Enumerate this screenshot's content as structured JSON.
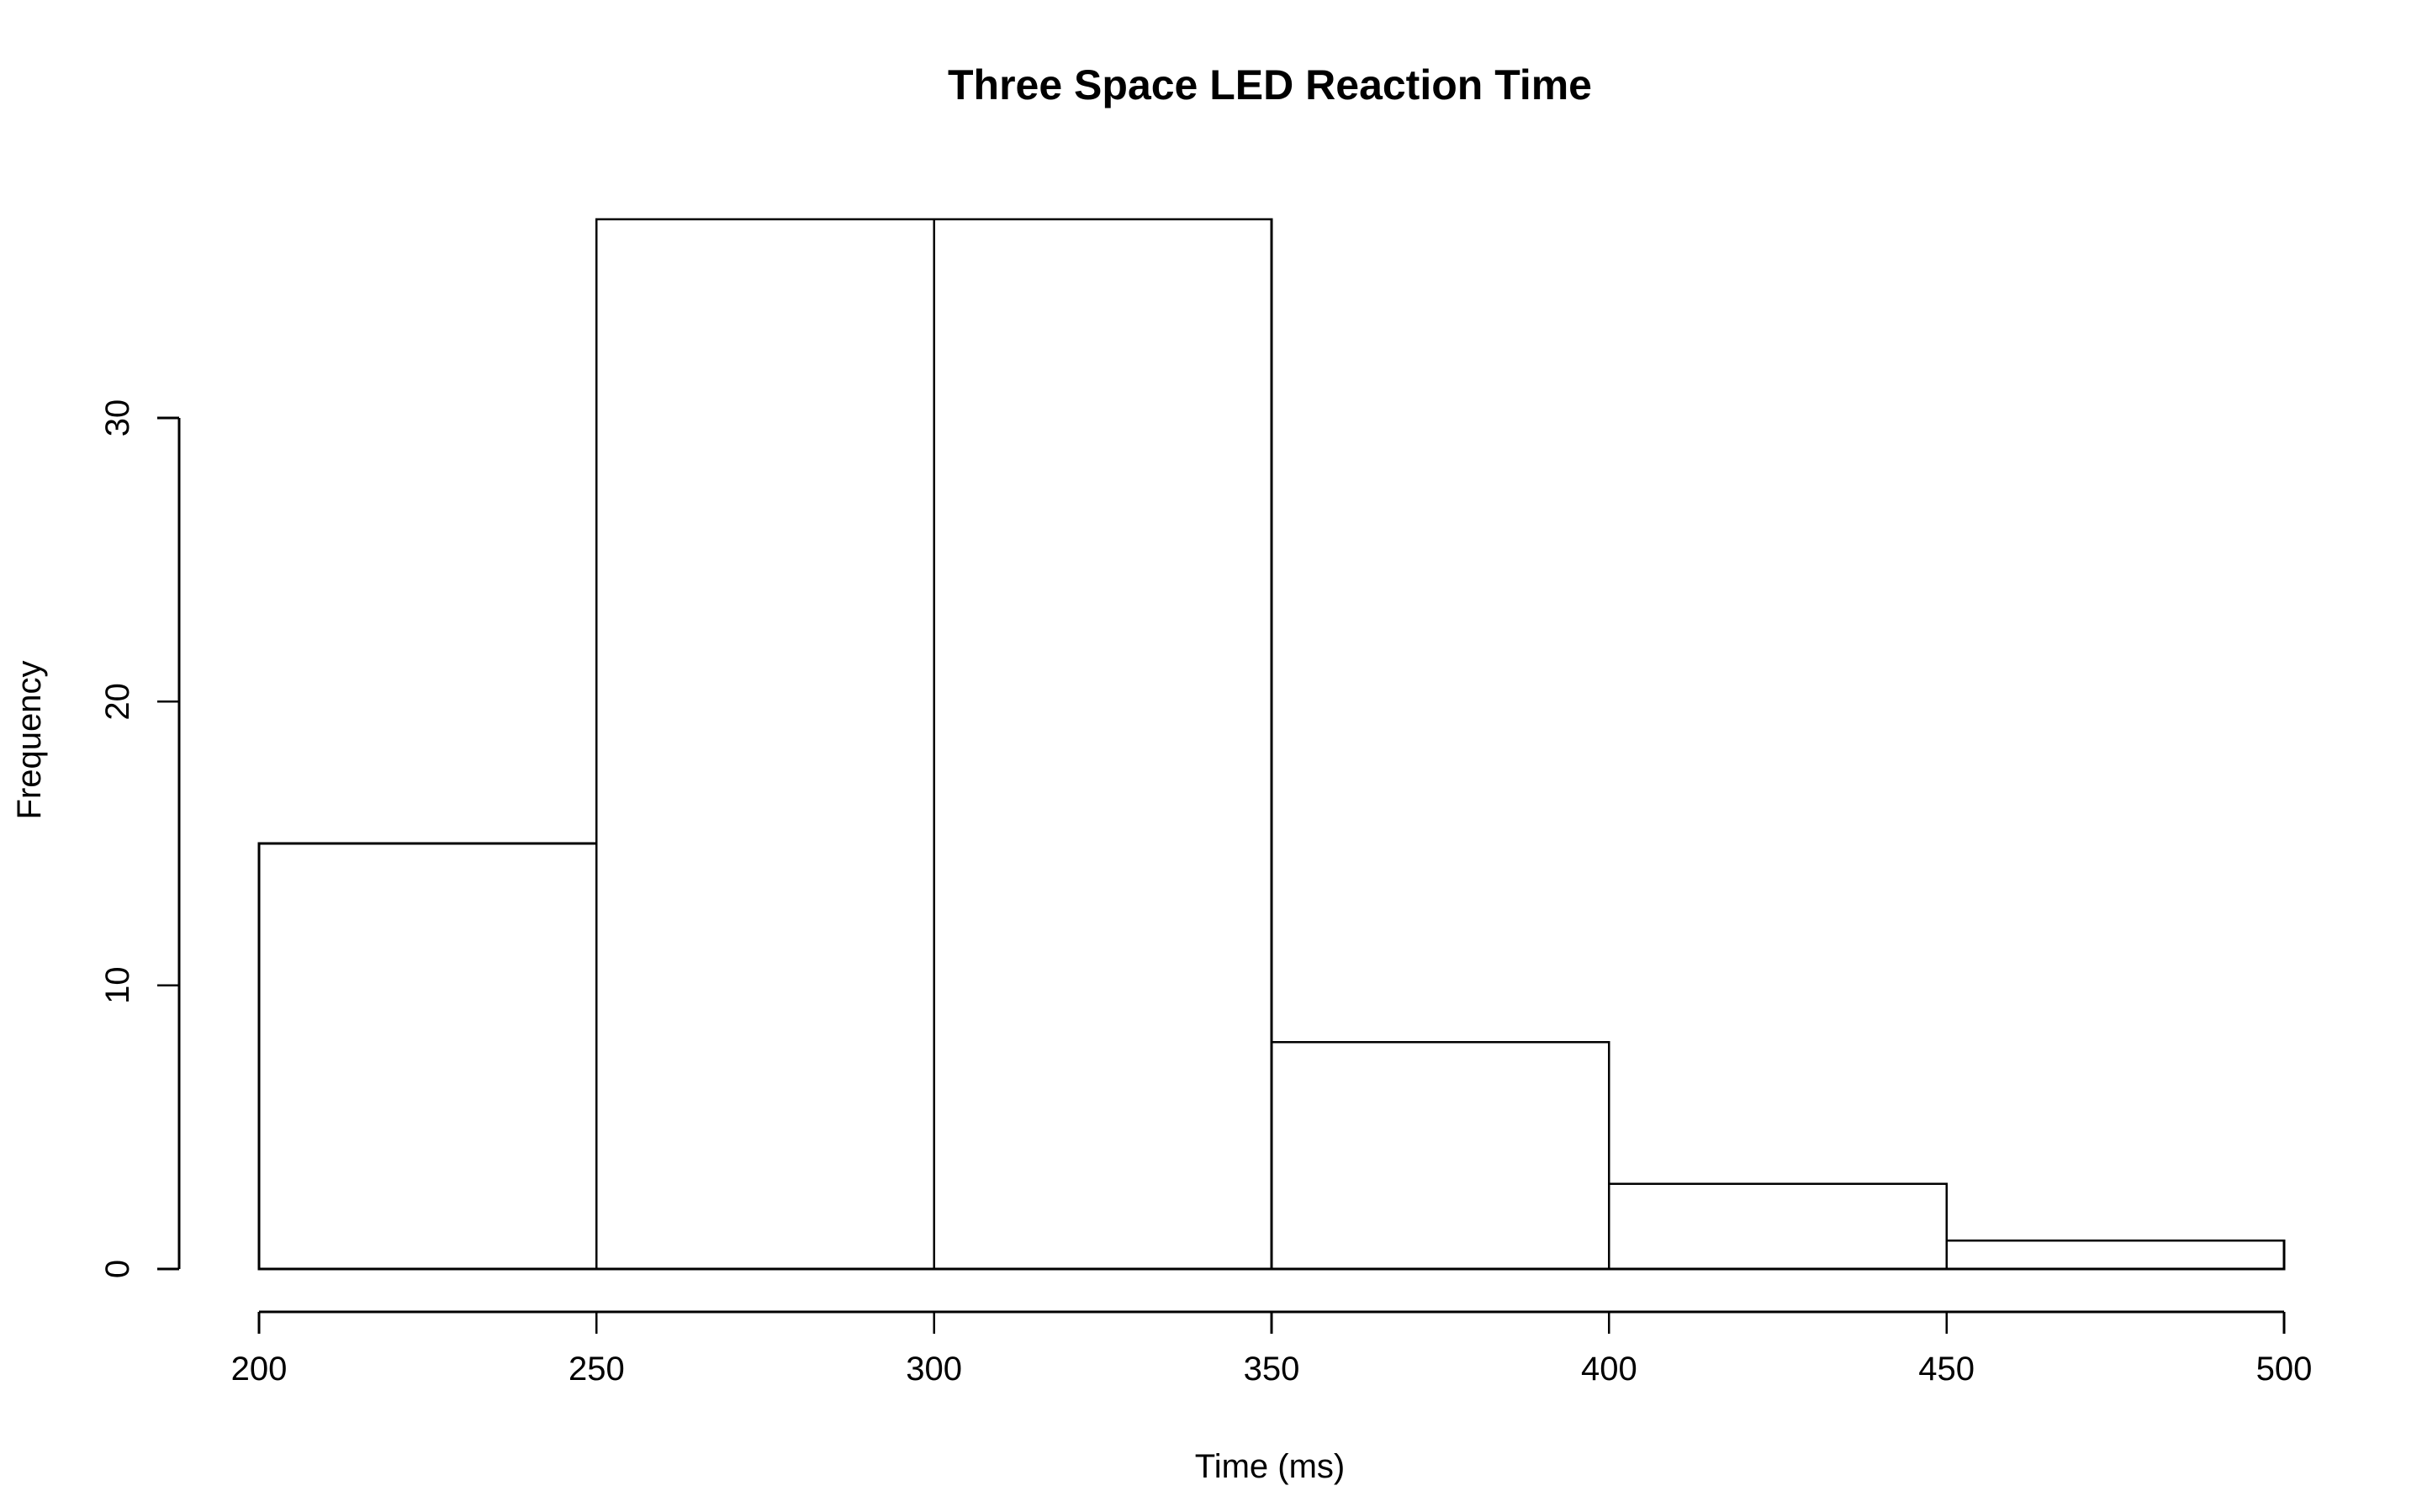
{
  "chart_data": {
    "type": "bar",
    "title": "Three Space LED Reaction Time",
    "xlabel": "Time (ms)",
    "ylabel": "Frequency",
    "bins": [
      {
        "start": 200,
        "end": 250,
        "count": 15
      },
      {
        "start": 250,
        "end": 300,
        "count": 37
      },
      {
        "start": 300,
        "end": 350,
        "count": 37
      },
      {
        "start": 350,
        "end": 400,
        "count": 8
      },
      {
        "start": 400,
        "end": 450,
        "count": 3
      },
      {
        "start": 450,
        "end": 500,
        "count": 1
      }
    ],
    "xlim": [
      200,
      500
    ],
    "ylim": [
      0,
      37
    ],
    "xticks": [
      200,
      250,
      300,
      350,
      400,
      450,
      500
    ],
    "yticks": [
      0,
      10,
      20,
      30
    ],
    "grid": false,
    "colors": {
      "bar_fill": "#ffffff",
      "bar_stroke": "#000000",
      "axis": "#000000",
      "background": "#ffffff"
    }
  }
}
